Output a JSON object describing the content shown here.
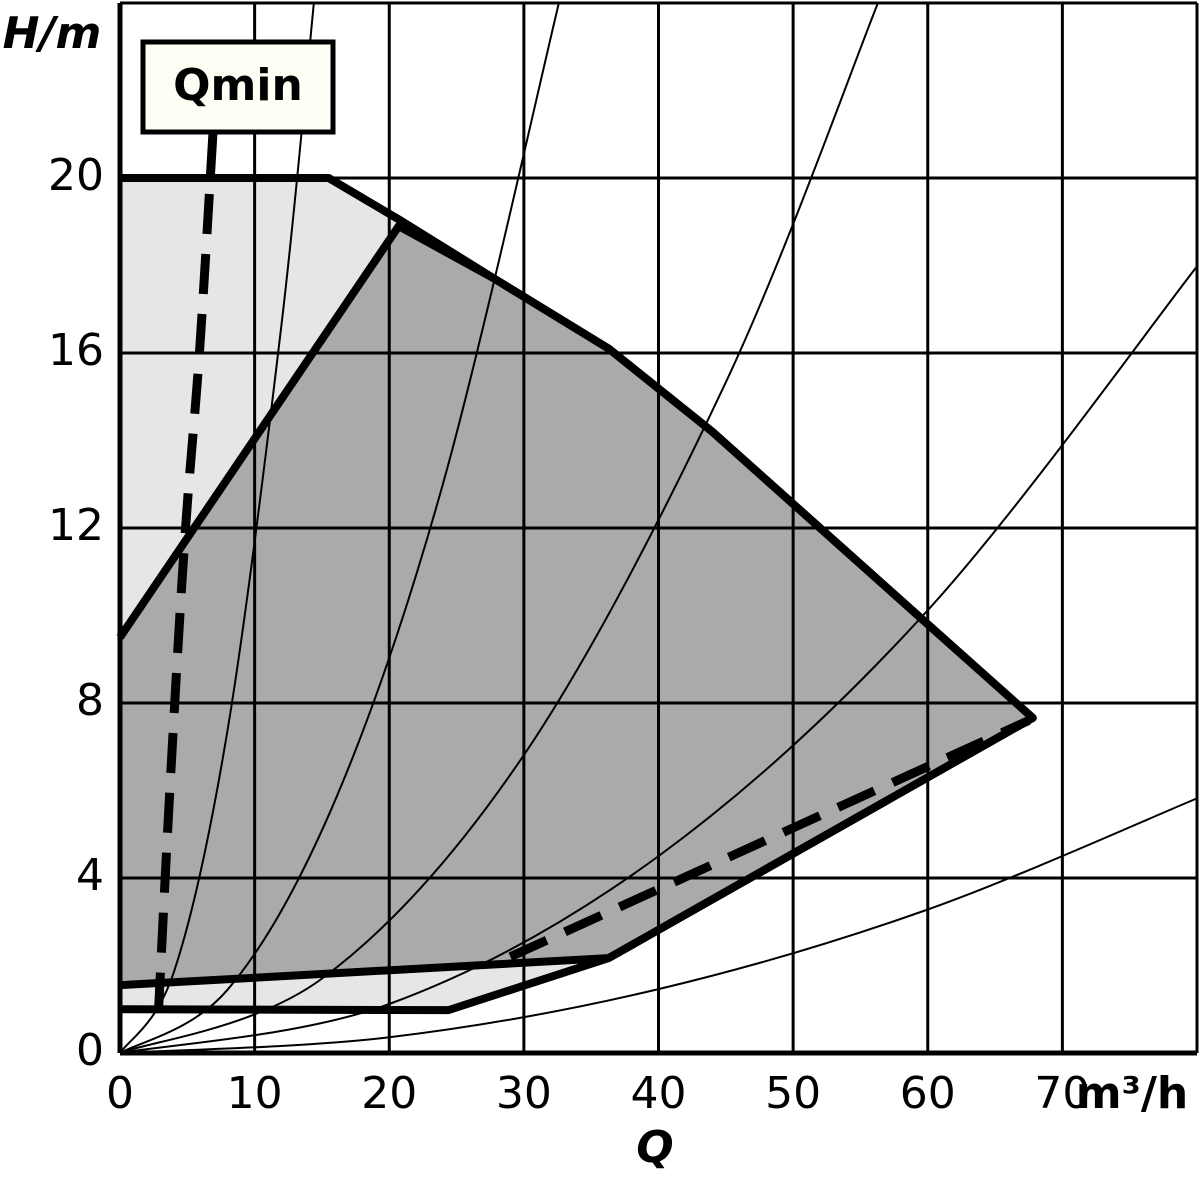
{
  "chart_data": {
    "type": "line",
    "ylabel": "H/m",
    "xlabel": "Q",
    "x_unit": "m³/h",
    "annotation": "Qmin",
    "xlim": [
      0,
      80
    ],
    "ylim": [
      0,
      24
    ],
    "xticks": [
      0,
      10,
      20,
      30,
      40,
      50,
      60,
      70
    ],
    "yticks": [
      0,
      4,
      8,
      12,
      16,
      20
    ],
    "grid": true,
    "grid_color": "#000000",
    "regions": [
      {
        "color": "#e6e6e6",
        "x": [
          0,
          15.5,
          21,
          27.8,
          36.3,
          44,
          52,
          60,
          67.8,
          36.3,
          24.4,
          0
        ],
        "values": [
          20,
          20,
          19,
          17.7,
          16.1,
          14.2,
          12,
          9.8,
          7.66,
          2.17,
          0.98,
          1
        ]
      },
      {
        "color": "#aaaaaa",
        "x": [
          0,
          20.7,
          27.8,
          36.3,
          44,
          52,
          60,
          67.8,
          36.3,
          0
        ],
        "values": [
          9.5,
          18.9,
          17.7,
          16.1,
          14.2,
          12,
          9.8,
          7.66,
          2.17,
          1.55
        ]
      }
    ],
    "series": [
      {
        "color": "#000000",
        "dash": true,
        "x": [
          6.9,
          5.9,
          4.8,
          3.7,
          2.8
        ],
        "values": [
          21,
          16,
          11.7,
          6,
          0.6
        ]
      },
      {
        "color": "#000000",
        "dash": true,
        "x": [
          29,
          67.5
        ],
        "values": [
          2.2,
          7.6
        ]
      }
    ],
    "system_curves": [
      {
        "color": "#000000",
        "x": [
          0,
          4,
          8,
          12,
          14.4
        ],
        "values": [
          0,
          1.85,
          7.4,
          16.66,
          24
        ]
      },
      {
        "color": "#000000",
        "x": [
          0,
          8,
          16,
          24,
          32.6
        ],
        "values": [
          0,
          1.45,
          5.79,
          13.02,
          24
        ]
      },
      {
        "color": "#000000",
        "x": [
          0,
          15,
          30,
          45,
          56.3
        ],
        "values": [
          0,
          1.7,
          6.81,
          15.33,
          24
        ]
      },
      {
        "color": "#000000",
        "x": [
          0,
          20,
          40,
          60,
          80
        ],
        "values": [
          0,
          1.12,
          4.5,
          10.12,
          17.98
        ]
      },
      {
        "color": "#000000",
        "x": [
          0,
          20,
          40,
          60,
          80
        ],
        "values": [
          0,
          0.36,
          1.46,
          3.28,
          5.82
        ]
      }
    ]
  }
}
